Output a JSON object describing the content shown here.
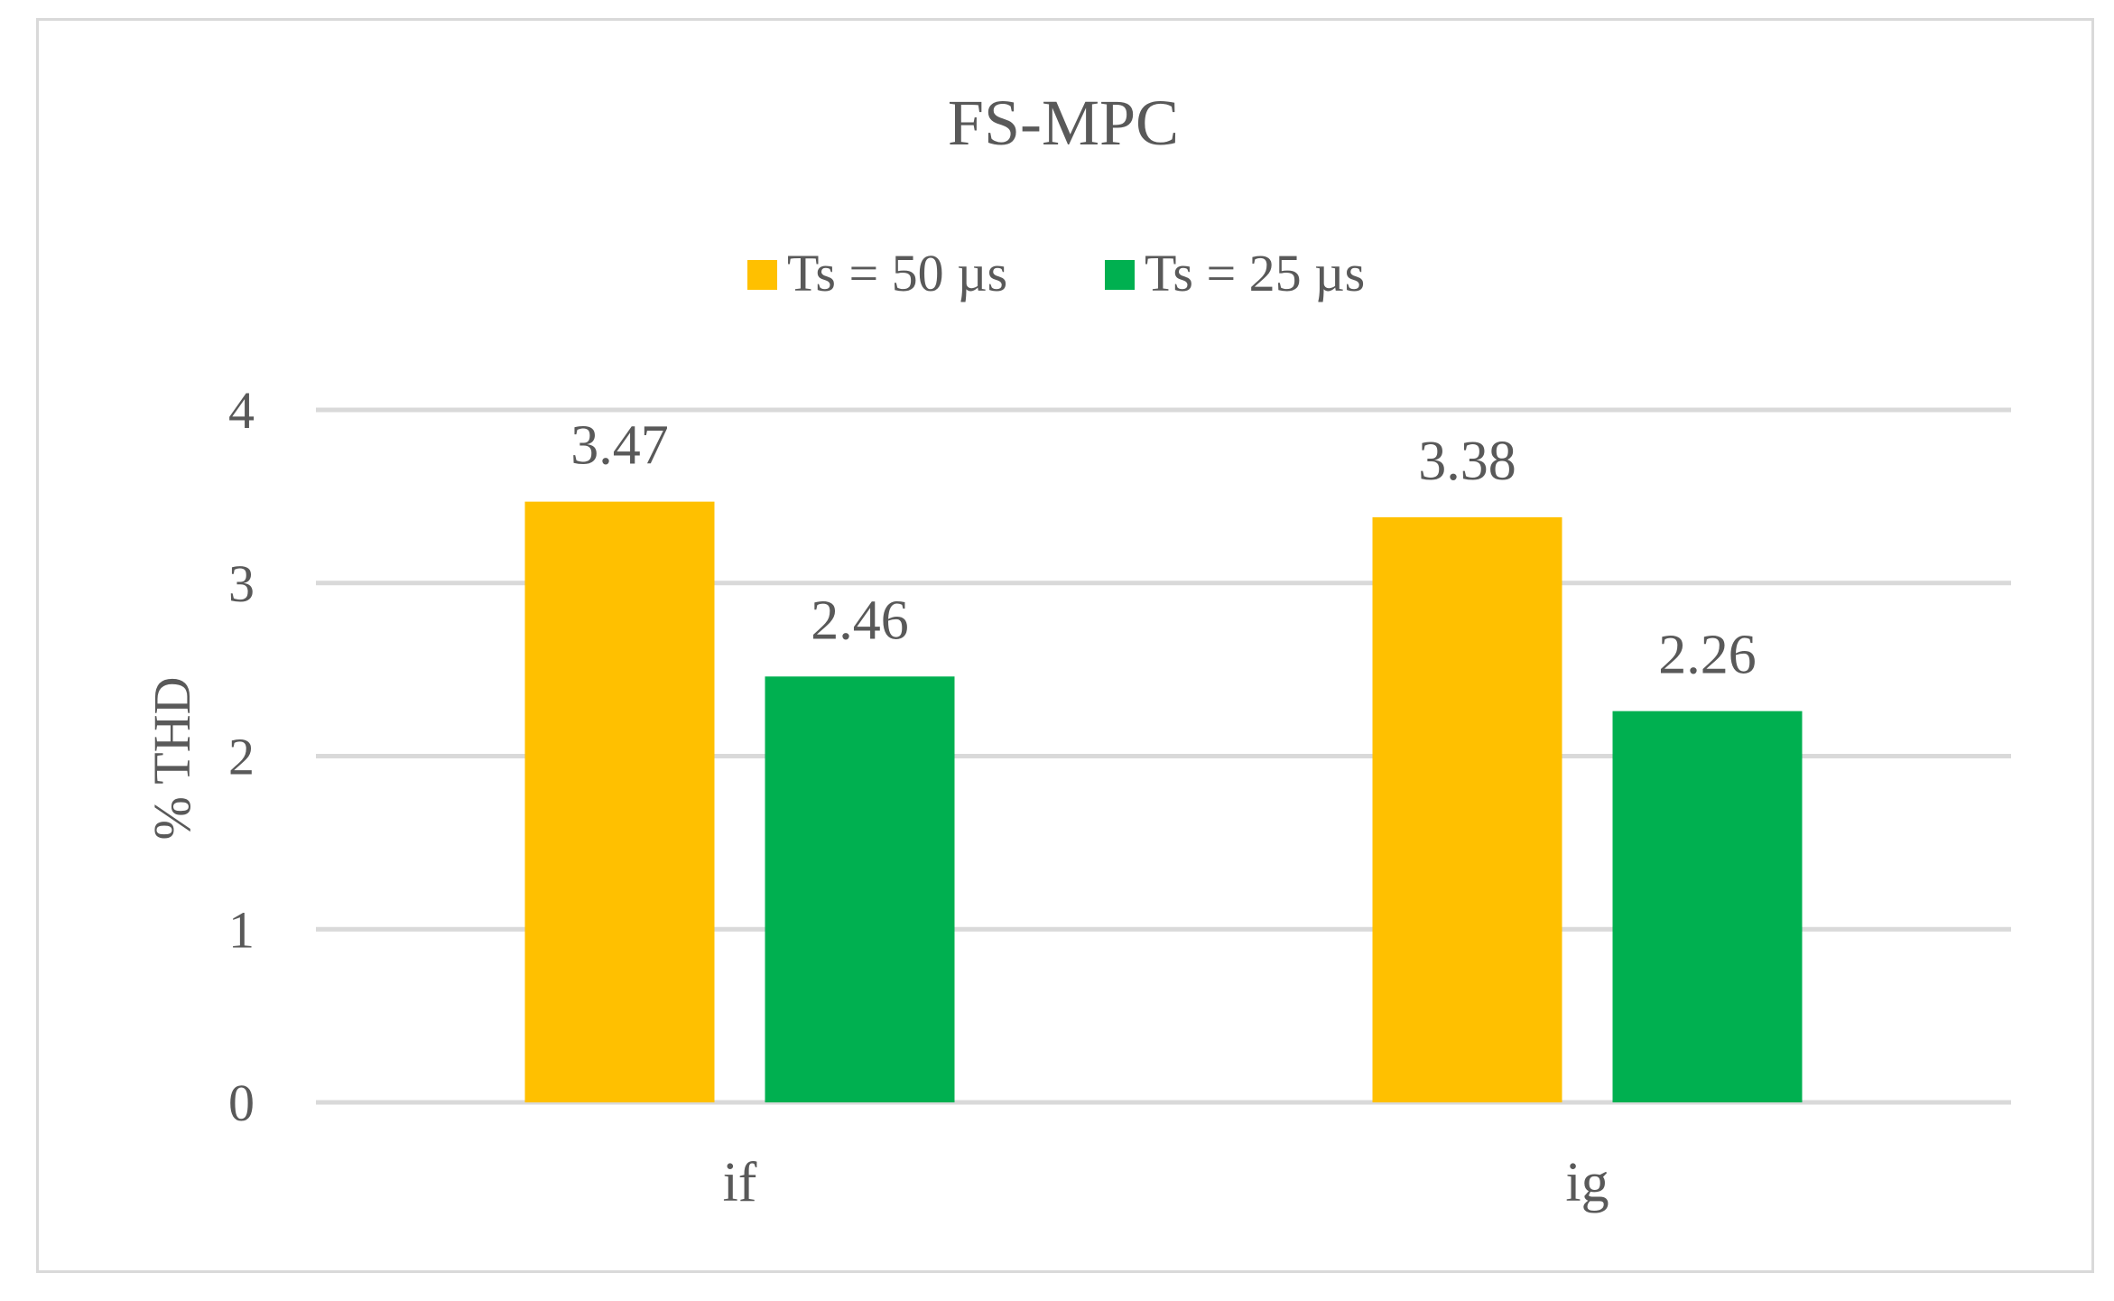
{
  "chart_data": {
    "type": "bar",
    "title": "FS-MPC",
    "xlabel": "",
    "ylabel": "% THD",
    "categories": [
      "if",
      "ig"
    ],
    "series": [
      {
        "name": "Ts = 50 µs",
        "values": [
          3.47,
          3.38
        ],
        "color": "#FFC000"
      },
      {
        "name": "Ts = 25 µs",
        "values": [
          2.46,
          2.26
        ],
        "color": "#00B050"
      }
    ],
    "ylim": [
      0,
      4
    ],
    "yticks": [
      0,
      1,
      2,
      3,
      4
    ],
    "grid": true,
    "legend_position": "top",
    "data_labels": [
      "3.47",
      "2.46",
      "3.38",
      "2.26"
    ],
    "tick_labels_y": [
      "0",
      "1",
      "2",
      "3",
      "4"
    ]
  }
}
